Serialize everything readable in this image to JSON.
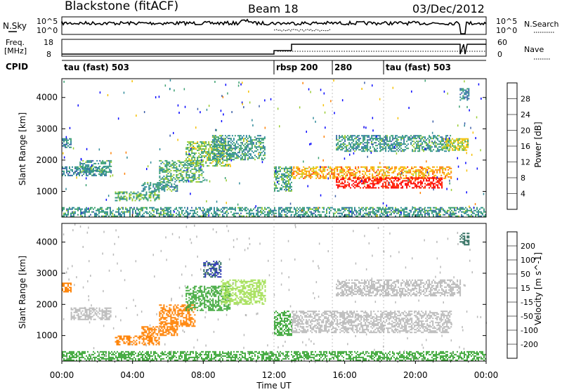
{
  "header": {
    "title": "Blackstone (fitACF)",
    "beam": "Beam 18",
    "date": "03/Dec/2012"
  },
  "top_panels": {
    "nsky_label": "N.Sky",
    "nsearch_label": "N.Search",
    "noise_ticks": [
      "10^5",
      "10^0"
    ],
    "freq_label_line1": "Freq.",
    "freq_label_line2": "[MHz]",
    "freq_ticks": [
      "18",
      "8"
    ],
    "nave_label": "Nave",
    "nave_ticks": [
      "60",
      "0"
    ],
    "cpid_label": "CPID",
    "cpid_segments": [
      {
        "label": "tau (fast) 503",
        "start_h": 0.0
      },
      {
        "label": "rbsp 200",
        "start_h": 12.0
      },
      {
        "label": "280",
        "start_h": 15.3
      },
      {
        "label": "tau (fast) 503",
        "start_h": 18.2
      }
    ]
  },
  "x_axis": {
    "label": "Time UT",
    "ticks": [
      "00:00",
      "04:00",
      "08:00",
      "12:00",
      "16:00",
      "20:00",
      "00:00"
    ]
  },
  "colors": {
    "power_scale": [
      "#0000ff",
      "#3b5ea8",
      "#2f8a9a",
      "#3aa070",
      "#9acd32",
      "#f5c000",
      "#ff8000",
      "#ff3000",
      "#ff0000"
    ],
    "velocity_scale": [
      "#1f2bb0",
      "#2a6a5a",
      "#3ea83a",
      "#a6e05a",
      "#b9b9b9",
      "#f5b03a",
      "#ff8000",
      "#ff3a00",
      "#ff0000"
    ],
    "ground": "#a0a0a0"
  },
  "chart_data": [
    {
      "type": "heatmap",
      "panel": "power",
      "ylabel": "Slant Range [km]",
      "xlim_h": [
        0,
        24
      ],
      "ylim": [
        180,
        4600
      ],
      "y_ticks": [
        1000,
        2000,
        3000,
        4000
      ],
      "colorbar": {
        "label": "Power [dB]",
        "ticks": [
          "28",
          "24",
          "20",
          "16",
          "12",
          "8",
          "4"
        ],
        "range": [
          0,
          30
        ]
      },
      "regions": [
        {
          "t0": 0.0,
          "t1": 24.0,
          "r0": 200,
          "r1": 500,
          "value": 10
        },
        {
          "t0": 0.0,
          "t1": 0.5,
          "r0": 2400,
          "r1": 2700,
          "value": 8
        },
        {
          "t0": 0.0,
          "t1": 2.5,
          "r0": 1500,
          "r1": 1800,
          "value": 8
        },
        {
          "t0": 1.0,
          "t1": 2.8,
          "r0": 1600,
          "r1": 2000,
          "value": 10
        },
        {
          "t0": 3.0,
          "t1": 5.5,
          "r0": 700,
          "r1": 1000,
          "value": 12
        },
        {
          "t0": 4.5,
          "t1": 6.5,
          "r0": 1000,
          "r1": 1300,
          "value": 10
        },
        {
          "t0": 5.5,
          "t1": 8.0,
          "r0": 1300,
          "r1": 2000,
          "value": 12
        },
        {
          "t0": 7.0,
          "t1": 9.5,
          "r0": 1800,
          "r1": 2600,
          "value": 14
        },
        {
          "t0": 8.5,
          "t1": 11.5,
          "r0": 2000,
          "r1": 2800,
          "value": 10
        },
        {
          "t0": 12.0,
          "t1": 13.0,
          "r0": 1000,
          "r1": 1800,
          "value": 12
        },
        {
          "t0": 13.0,
          "t1": 22.0,
          "r0": 1400,
          "r1": 1800,
          "value": 20
        },
        {
          "t0": 15.5,
          "t1": 21.5,
          "r0": 1100,
          "r1": 1450,
          "value": 28
        },
        {
          "t0": 15.5,
          "t1": 22.0,
          "r0": 2300,
          "r1": 2800,
          "value": 10
        },
        {
          "t0": 21.5,
          "t1": 23.0,
          "r0": 2300,
          "r1": 2700,
          "value": 16
        },
        {
          "t0": 22.5,
          "t1": 23.0,
          "r0": 3900,
          "r1": 4300,
          "value": 8
        }
      ]
    },
    {
      "type": "heatmap",
      "panel": "velocity",
      "ylabel": "Slant Range [km]",
      "xlim_h": [
        0,
        24
      ],
      "ylim": [
        180,
        4600
      ],
      "y_ticks": [
        1000,
        2000,
        3000,
        4000
      ],
      "colorbar": {
        "label": "Velocity [m s^-1]",
        "ticks": [
          "200",
          "100",
          "50",
          "15",
          "-15",
          "-50",
          "-100",
          "-200"
        ],
        "range": [
          -250,
          250
        ]
      },
      "regions": [
        {
          "t0": 0.0,
          "t1": 24.0,
          "r0": 200,
          "r1": 500,
          "value": 60
        },
        {
          "t0": 0.0,
          "t1": 0.5,
          "r0": 2400,
          "r1": 2700,
          "value": -80
        },
        {
          "t0": 0.5,
          "t1": 2.8,
          "r0": 1500,
          "r1": 1900,
          "value": -10
        },
        {
          "t0": 3.0,
          "t1": 5.5,
          "r0": 700,
          "r1": 1000,
          "value": -80
        },
        {
          "t0": 4.5,
          "t1": 6.5,
          "r0": 1000,
          "r1": 1300,
          "value": -80
        },
        {
          "t0": 5.5,
          "t1": 7.5,
          "r0": 1300,
          "r1": 2000,
          "value": -80
        },
        {
          "t0": 7.0,
          "t1": 9.5,
          "r0": 1800,
          "r1": 2600,
          "value": 70
        },
        {
          "t0": 8.0,
          "t1": 9.0,
          "r0": 2900,
          "r1": 3400,
          "value": 200
        },
        {
          "t0": 9.0,
          "t1": 11.5,
          "r0": 2000,
          "r1": 2800,
          "value": 40
        },
        {
          "t0": 12.0,
          "t1": 13.0,
          "r0": 1000,
          "r1": 1800,
          "value": 60
        },
        {
          "t0": 13.0,
          "t1": 22.0,
          "r0": 1100,
          "r1": 1800,
          "value": 0
        },
        {
          "t0": 15.5,
          "t1": 22.5,
          "r0": 2300,
          "r1": 2800,
          "value": 0
        },
        {
          "t0": 22.5,
          "t1": 23.0,
          "r0": 3900,
          "r1": 4300,
          "value": 150
        }
      ]
    }
  ]
}
